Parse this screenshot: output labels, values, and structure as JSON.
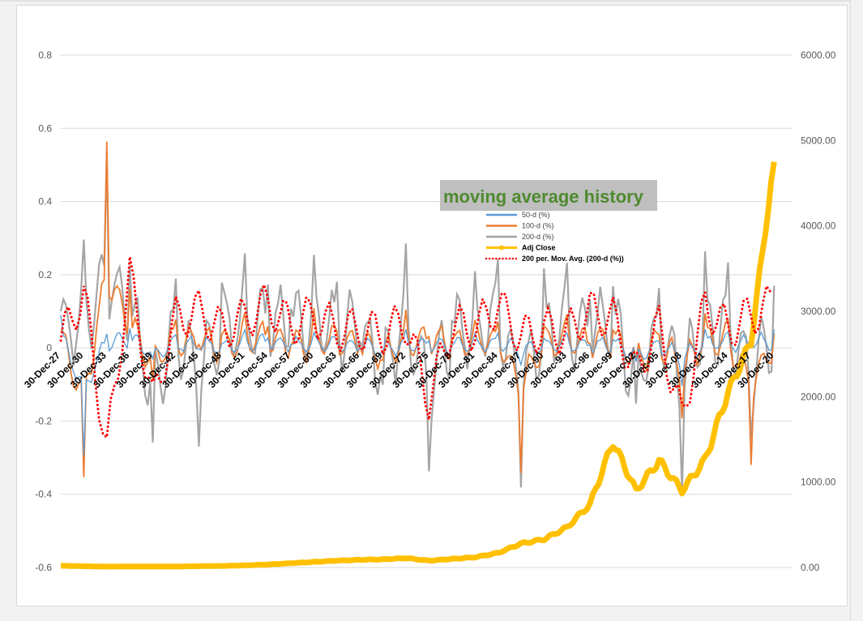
{
  "chart_data": {
    "type": "line",
    "title": "moving average history",
    "categories": [
      "30-Dec-27",
      "30-Dec-30",
      "30-Dec-33",
      "30-Dec-36",
      "30-Dec-39",
      "30-Dec-42",
      "30-Dec-45",
      "30-Dec-48",
      "30-Dec-51",
      "30-Dec-54",
      "30-Dec-57",
      "30-Dec-60",
      "30-Dec-63",
      "30-Dec-66",
      "30-Dec-69",
      "30-Dec-72",
      "30-Dec-75",
      "30-Dec-78",
      "30-Dec-81",
      "30-Dec-84",
      "30-Dec-87",
      "30-Dec-90",
      "30-Dec-93",
      "30-Dec-96",
      "30-Dec-99",
      "30-Dec-02",
      "30-Dec-05",
      "30-Dec-08",
      "30-Dec-11",
      "30-Dec-14",
      "30-Dec-17",
      "30-Dec-20"
    ],
    "y_ticks": [
      "0.8",
      "0.6",
      "0.4",
      "0.2",
      "0",
      "-0.2",
      "-0.4",
      "-0.6"
    ],
    "ylim": [
      -0.6,
      0.8
    ],
    "y2_ticks": [
      "6000.00",
      "5000.00",
      "4000.00",
      "3000.00",
      "2000.00",
      "1000.00",
      "0.00"
    ],
    "y2lim": [
      0,
      6000
    ],
    "grid": true,
    "legend_position": "center-top",
    "series": [
      {
        "name": "50-d (%)",
        "axis": "left",
        "color": "#5b9bd5",
        "style": "line",
        "values": [
          0.09,
          -0.32,
          0.05,
          0.07,
          -0.05,
          0.03,
          0.02,
          0.01,
          0.03,
          0.04,
          0.02,
          0.03,
          0.02,
          0.02,
          -0.02,
          0.03,
          0.03,
          0.02,
          0.02,
          0.04,
          -0.02,
          0.02,
          0.03,
          0.02,
          0.03,
          -0.05,
          0.02,
          -0.08,
          0.04,
          0.03,
          0.04,
          0.05
        ]
      },
      {
        "name": "100-d (%)",
        "axis": "left",
        "color": "#ed7d31",
        "style": "line",
        "values": [
          0.05,
          -0.38,
          0.58,
          0.18,
          -0.12,
          0.06,
          0.05,
          0.03,
          0.06,
          0.08,
          0.03,
          0.06,
          0.04,
          0.04,
          -0.05,
          0.06,
          0.06,
          0.04,
          0.05,
          0.07,
          -0.3,
          0.04,
          0.05,
          0.05,
          0.06,
          -0.08,
          0.04,
          -0.15,
          0.07,
          0.05,
          -0.28,
          0.04
        ]
      },
      {
        "name": "200-d (%)",
        "axis": "left",
        "color": "#a5a5a5",
        "style": "line",
        "values": [
          0.1,
          0.22,
          0.57,
          0.3,
          -0.35,
          0.15,
          -0.2,
          0.17,
          0.17,
          0.21,
          0.18,
          0.2,
          0.17,
          0.14,
          -0.12,
          0.19,
          -0.29,
          0.12,
          0.15,
          0.24,
          -0.26,
          0.17,
          0.15,
          0.19,
          0.2,
          -0.25,
          0.17,
          -0.28,
          0.21,
          0.19,
          -0.2,
          0.17
        ]
      },
      {
        "name": "Adj Close",
        "axis": "right",
        "color": "#ffc000",
        "style": "line",
        "values": [
          20,
          15,
          10,
          12,
          12,
          12,
          15,
          18,
          25,
          35,
          50,
          65,
          80,
          90,
          95,
          110,
          80,
          100,
          120,
          170,
          280,
          330,
          470,
          740,
          1470,
          900,
          1250,
          900,
          1260,
          2050,
          2650,
          4750
        ]
      },
      {
        "name": "200 per. Mov. Avg. (200-d (%))",
        "axis": "left",
        "color": "#ff0000",
        "style": "dotted",
        "values": [
          0.02,
          0.15,
          -0.28,
          0.2,
          -0.15,
          0.08,
          0.1,
          0.05,
          0.08,
          0.12,
          0.06,
          0.09,
          0.05,
          0.05,
          0.04,
          0.07,
          -0.14,
          0.06,
          0.05,
          0.12,
          0.03,
          0.05,
          0.04,
          0.1,
          0.08,
          -0.07,
          0.06,
          -0.2,
          0.12,
          0.05,
          0.09,
          0.12
        ]
      }
    ]
  }
}
